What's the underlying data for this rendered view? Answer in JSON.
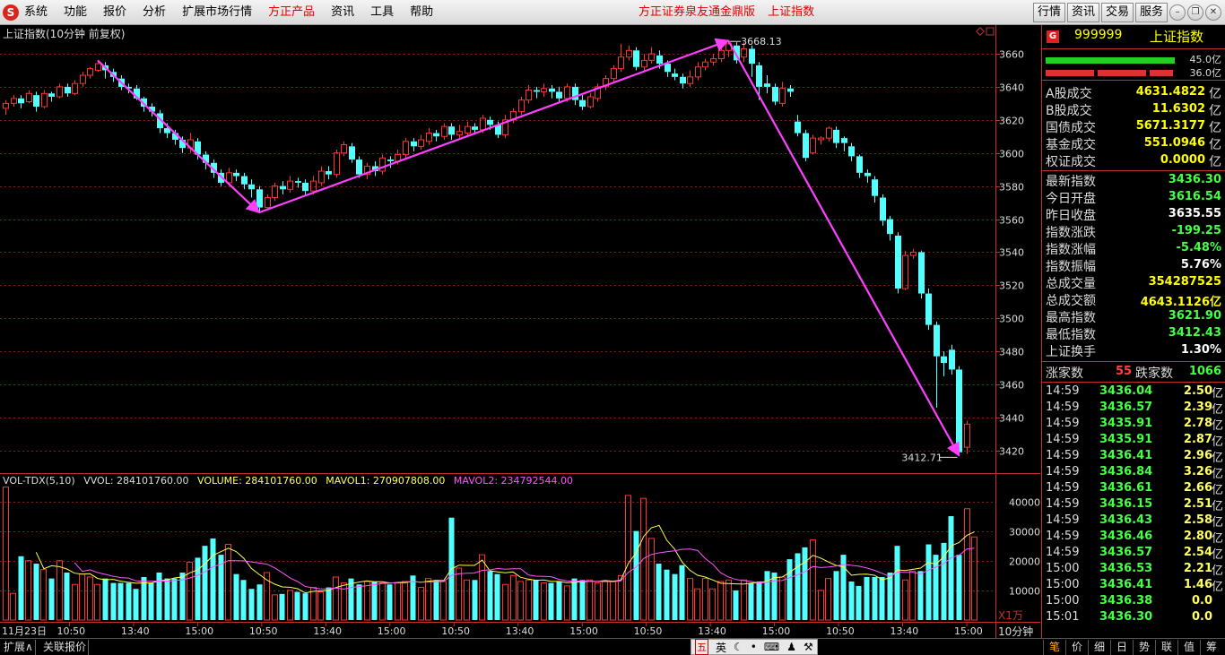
{
  "menubar": {
    "logo": "S",
    "items": [
      "系统",
      "功能",
      "报价",
      "分析",
      "扩展市场行情",
      "方正产品",
      "资讯",
      "工具",
      "帮助"
    ],
    "center_title": "方正证券泉友通金鼎版",
    "center_subtitle": "上证指数",
    "right_buttons": [
      "行情",
      "资讯",
      "交易",
      "服务"
    ]
  },
  "chart": {
    "title": "上证指数(10分钟 前复权)",
    "vol_title": {
      "name": "VOL-TDX(5,10)",
      "vvol": "VVOL: 284101760.00",
      "volume": "VOLUME: 284101760.00",
      "mavol1": "MAVOL1: 270907808.00",
      "mavol2": "MAVOL2: 234792544.00"
    },
    "vol_unit": "X1万",
    "period": "10分钟",
    "high_label": "3668.13",
    "low_label": "3412.71",
    "colors": {
      "up": "#ff3232",
      "down": "#54ffff",
      "ma1": "#ffff54",
      "ma2": "#ff54ff",
      "trend": "#ff40ff",
      "grid": "#8b1a1a"
    }
  },
  "chart_data": {
    "type": "candlestick",
    "price_axis": {
      "ticks": [
        3420,
        3440,
        3460,
        3480,
        3500,
        3520,
        3540,
        3560,
        3580,
        3600,
        3620,
        3640,
        3660
      ],
      "range": [
        3408,
        3673
      ]
    },
    "volume_axis": {
      "ticks": [
        10000,
        20000,
        30000,
        40000
      ],
      "range": [
        0,
        48000
      ],
      "unit": "X1万"
    },
    "time_axis_labels": [
      "11月23日",
      "10:50",
      "13:40",
      "15:00",
      "10:50",
      "13:40",
      "15:00",
      "10:50",
      "13:40",
      "15:00",
      "10:50",
      "13:40",
      "15:00",
      "10:50",
      "13:40",
      "15:00"
    ],
    "candles": [
      [
        3627,
        3630,
        3623,
        3632
      ],
      [
        3630,
        3633,
        3628,
        3635
      ],
      [
        3633,
        3630,
        3627,
        3635
      ],
      [
        3631,
        3636,
        3630,
        3638
      ],
      [
        3635,
        3628,
        3625,
        3637
      ],
      [
        3628,
        3636,
        3627,
        3638
      ],
      [
        3636,
        3634,
        3631,
        3637
      ],
      [
        3634,
        3640,
        3633,
        3642
      ],
      [
        3640,
        3636,
        3634,
        3642
      ],
      [
        3636,
        3642,
        3635,
        3644
      ],
      [
        3642,
        3647,
        3640,
        3649
      ],
      [
        3647,
        3651,
        3645,
        3652
      ],
      [
        3650,
        3654,
        3649,
        3656
      ],
      [
        3653,
        3650,
        3645,
        3655
      ],
      [
        3649,
        3646,
        3643,
        3651
      ],
      [
        3645,
        3640,
        3638,
        3647
      ],
      [
        3640,
        3639,
        3636,
        3642
      ],
      [
        3639,
        3633,
        3632,
        3641
      ],
      [
        3633,
        3628,
        3625,
        3634
      ],
      [
        3628,
        3625,
        3622,
        3630
      ],
      [
        3624,
        3615,
        3612,
        3626
      ],
      [
        3615,
        3612,
        3609,
        3618
      ],
      [
        3612,
        3608,
        3605,
        3614
      ],
      [
        3608,
        3603,
        3600,
        3610
      ],
      [
        3603,
        3608,
        3600,
        3612
      ],
      [
        3607,
        3599,
        3596,
        3609
      ],
      [
        3599,
        3594,
        3590,
        3601
      ],
      [
        3594,
        3588,
        3585,
        3596
      ],
      [
        3588,
        3582,
        3580,
        3590
      ],
      [
        3582,
        3588,
        3580,
        3591
      ],
      [
        3588,
        3586,
        3583,
        3590
      ],
      [
        3586,
        3581,
        3578,
        3588
      ],
      [
        3581,
        3578,
        3573,
        3584
      ],
      [
        3578,
        3567,
        3564,
        3580
      ],
      [
        3567,
        3573,
        3566,
        3575
      ],
      [
        3573,
        3580,
        3571,
        3582
      ],
      [
        3580,
        3578,
        3575,
        3583
      ],
      [
        3578,
        3583,
        3576,
        3586
      ],
      [
        3583,
        3582,
        3579,
        3585
      ],
      [
        3582,
        3577,
        3574,
        3584
      ],
      [
        3577,
        3583,
        3575,
        3586
      ],
      [
        3582,
        3589,
        3580,
        3592
      ],
      [
        3589,
        3587,
        3584,
        3592
      ],
      [
        3587,
        3600,
        3585,
        3602
      ],
      [
        3600,
        3605,
        3598,
        3607
      ],
      [
        3604,
        3596,
        3594,
        3606
      ],
      [
        3596,
        3587,
        3585,
        3598
      ],
      [
        3587,
        3592,
        3584,
        3594
      ],
      [
        3592,
        3589,
        3586,
        3595
      ],
      [
        3589,
        3597,
        3587,
        3599
      ],
      [
        3596,
        3595,
        3591,
        3598
      ],
      [
        3595,
        3599,
        3593,
        3602
      ],
      [
        3599,
        3607,
        3597,
        3609
      ],
      [
        3607,
        3604,
        3601,
        3609
      ],
      [
        3604,
        3608,
        3602,
        3611
      ],
      [
        3607,
        3612,
        3605,
        3615
      ],
      [
        3612,
        3610,
        3607,
        3614
      ],
      [
        3610,
        3616,
        3608,
        3618
      ],
      [
        3616,
        3611,
        3608,
        3618
      ],
      [
        3611,
        3613,
        3609,
        3617
      ],
      [
        3612,
        3616,
        3610,
        3619
      ],
      [
        3616,
        3614,
        3611,
        3618
      ],
      [
        3614,
        3621,
        3612,
        3623
      ],
      [
        3620,
        3617,
        3614,
        3622
      ],
      [
        3617,
        3611,
        3609,
        3619
      ],
      [
        3611,
        3620,
        3609,
        3623
      ],
      [
        3620,
        3625,
        3618,
        3627
      ],
      [
        3625,
        3632,
        3623,
        3634
      ],
      [
        3632,
        3638,
        3630,
        3641
      ],
      [
        3638,
        3637,
        3633,
        3640
      ],
      [
        3637,
        3639,
        3634,
        3642
      ],
      [
        3639,
        3637,
        3633,
        3641
      ],
      [
        3637,
        3633,
        3630,
        3640
      ],
      [
        3633,
        3640,
        3631,
        3642
      ],
      [
        3640,
        3632,
        3629,
        3642
      ],
      [
        3632,
        3628,
        3626,
        3635
      ],
      [
        3628,
        3634,
        3627,
        3636
      ],
      [
        3633,
        3640,
        3631,
        3642
      ],
      [
        3640,
        3645,
        3638,
        3647
      ],
      [
        3645,
        3651,
        3643,
        3653
      ],
      [
        3651,
        3658,
        3649,
        3666
      ],
      [
        3658,
        3662,
        3656,
        3665
      ],
      [
        3662,
        3652,
        3650,
        3664
      ],
      [
        3652,
        3656,
        3650,
        3660
      ],
      [
        3656,
        3660,
        3654,
        3664
      ],
      [
        3659,
        3654,
        3651,
        3662
      ],
      [
        3654,
        3649,
        3646,
        3656
      ],
      [
        3648,
        3646,
        3644,
        3651
      ],
      [
        3646,
        3642,
        3639,
        3648
      ],
      [
        3642,
        3646,
        3640,
        3650
      ],
      [
        3646,
        3652,
        3644,
        3655
      ],
      [
        3652,
        3655,
        3650,
        3657
      ],
      [
        3655,
        3657,
        3653,
        3660
      ],
      [
        3657,
        3662,
        3655,
        3665
      ],
      [
        3662,
        3666,
        3658,
        3668
      ],
      [
        3665,
        3656,
        3654,
        3667
      ],
      [
        3658,
        3663,
        3655,
        3667
      ],
      [
        3663,
        3654,
        3646,
        3665
      ],
      [
        3653,
        3640,
        3632,
        3655
      ],
      [
        3642,
        3640,
        3636,
        3647
      ],
      [
        3640,
        3631,
        3629,
        3642
      ],
      [
        3630,
        3639,
        3628,
        3643
      ],
      [
        3639,
        3637,
        3634,
        3641
      ],
      [
        3619,
        3612,
        3610,
        3623
      ],
      [
        3612,
        3597,
        3595,
        3614
      ],
      [
        3600,
        3609,
        3599,
        3611
      ],
      [
        3608,
        3609,
        3605,
        3610
      ],
      [
        3609,
        3615,
        3607,
        3616
      ],
      [
        3614,
        3606,
        3603,
        3616
      ],
      [
        3609,
        3606,
        3601,
        3610
      ],
      [
        3604,
        3598,
        3595,
        3606
      ],
      [
        3598,
        3588,
        3585,
        3599
      ],
      [
        3588,
        3586,
        3582,
        3590
      ],
      [
        3584,
        3574,
        3570,
        3586
      ],
      [
        3573,
        3559,
        3556,
        3575
      ],
      [
        3560,
        3551,
        3547,
        3562
      ],
      [
        3550,
        3518,
        3515,
        3552
      ],
      [
        3518,
        3538,
        3517,
        3541
      ],
      [
        3538,
        3540,
        3536,
        3542
      ],
      [
        3540,
        3515,
        3512,
        3541
      ],
      [
        3515,
        3496,
        3493,
        3518
      ],
      [
        3496,
        3477,
        3446,
        3498
      ],
      [
        3477,
        3473,
        3465,
        3480
      ],
      [
        3481,
        3469,
        3466,
        3484
      ],
      [
        3469,
        3419,
        3417,
        3471
      ],
      [
        3422,
        3436,
        3418,
        3438
      ]
    ],
    "volumes": [
      44800,
      9000,
      21500,
      20000,
      19000,
      17000,
      14000,
      20000,
      16000,
      12000,
      15500,
      14500,
      12000,
      14000,
      12500,
      12500,
      12500,
      10500,
      14500,
      12500,
      16000,
      14000,
      14000,
      16000,
      19500,
      21000,
      25000,
      27500,
      22000,
      25500,
      15500,
      13500,
      10500,
      12000,
      16000,
      8500,
      8800,
      10000,
      9500,
      9000,
      11000,
      9500,
      11000,
      14500,
      12500,
      14000,
      12000,
      13000,
      13000,
      12500,
      12000,
      12500,
      13000,
      15000,
      11000,
      14000,
      13500,
      13000,
      34500,
      17500,
      13500,
      13500,
      22000,
      16500,
      15500,
      12000,
      15000,
      13000,
      13500,
      13500,
      12500,
      12500,
      13000,
      11500,
      14000,
      13500,
      13500,
      12500,
      13000,
      13000,
      15000,
      42000,
      30000,
      41000,
      27500,
      19000,
      17000,
      15500,
      18500,
      14000,
      10500,
      14000,
      10500,
      13000,
      13500,
      10000,
      13500,
      12500,
      13000,
      16500,
      16000,
      14500,
      20500,
      22500,
      24500,
      27000,
      10000,
      14000,
      16500,
      22000,
      13000,
      11500,
      14500,
      14500,
      14500,
      16000,
      25000,
      13500,
      16500,
      16500,
      25500,
      22000,
      26000,
      35000,
      22000,
      37500,
      28000
    ],
    "ma_overlay": [
      {
        "name": "MAVOL1",
        "ref": "chart.vol_title.mavol1"
      },
      {
        "name": "MAVOL2",
        "ref": "chart.vol_title.mavol2"
      }
    ]
  },
  "panel": {
    "code": "999999",
    "name": "上证指数",
    "g_icon": "G",
    "bar_top": {
      "value": "45.0亿"
    },
    "bar_bottom": {
      "value": "36.0亿"
    },
    "turnover": [
      {
        "label": "A股成交",
        "value": "4631.4822",
        "unit": "亿",
        "color": "yellow"
      },
      {
        "label": "B股成交",
        "value": "11.6302",
        "unit": "亿",
        "color": "yellow"
      },
      {
        "label": "国债成交",
        "value": "5671.3177",
        "unit": "亿",
        "color": "yellow"
      },
      {
        "label": "基金成交",
        "value": "551.0946",
        "unit": "亿",
        "color": "yellow"
      },
      {
        "label": "权证成交",
        "value": "0.0000",
        "unit": "亿",
        "color": "yellow"
      }
    ],
    "quote": [
      {
        "label": "最新指数",
        "value": "3436.30",
        "color": "green"
      },
      {
        "label": "今日开盘",
        "value": "3616.54",
        "color": "green"
      },
      {
        "label": "昨日收盘",
        "value": "3635.55",
        "color": "white"
      },
      {
        "label": "指数涨跌",
        "value": "-199.25",
        "color": "green"
      },
      {
        "label": "指数涨幅",
        "value": "-5.48%",
        "color": "green"
      },
      {
        "label": "指数振幅",
        "value": "5.76%",
        "color": "white"
      },
      {
        "label": "总成交量",
        "value": "354287525",
        "color": "yellow"
      },
      {
        "label": "总成交额",
        "value": "4643.1126亿",
        "color": "yellow"
      },
      {
        "label": "最高指数",
        "value": "3621.90",
        "color": "green"
      },
      {
        "label": "最低指数",
        "value": "3412.43",
        "color": "green"
      },
      {
        "label": "上证换手",
        "value": "1.30%",
        "color": "white"
      }
    ],
    "breadth": {
      "up_label": "涨家数",
      "up_value": "55",
      "down_label": "跌家数",
      "down_value": "1066"
    },
    "ticks": [
      {
        "time": "14:59",
        "price": "3436.04",
        "vol": "2.50",
        "unit": "亿"
      },
      {
        "time": "14:59",
        "price": "3436.57",
        "vol": "2.39",
        "unit": "亿"
      },
      {
        "time": "14:59",
        "price": "3435.91",
        "vol": "2.78",
        "unit": "亿"
      },
      {
        "time": "14:59",
        "price": "3435.91",
        "vol": "2.87",
        "unit": "亿"
      },
      {
        "time": "14:59",
        "price": "3436.41",
        "vol": "2.96",
        "unit": "亿"
      },
      {
        "time": "14:59",
        "price": "3436.84",
        "vol": "3.26",
        "unit": "亿"
      },
      {
        "time": "14:59",
        "price": "3436.61",
        "vol": "2.66",
        "unit": "亿"
      },
      {
        "time": "14:59",
        "price": "3436.15",
        "vol": "2.51",
        "unit": "亿"
      },
      {
        "time": "14:59",
        "price": "3436.43",
        "vol": "2.58",
        "unit": "亿"
      },
      {
        "time": "14:59",
        "price": "3436.46",
        "vol": "2.80",
        "unit": "亿"
      },
      {
        "time": "14:59",
        "price": "3436.57",
        "vol": "2.54",
        "unit": "亿"
      },
      {
        "time": "15:00",
        "price": "3436.53",
        "vol": "2.21",
        "unit": "亿"
      },
      {
        "time": "15:00",
        "price": "3436.41",
        "vol": "1.46",
        "unit": "亿"
      },
      {
        "time": "15:00",
        "price": "3436.38",
        "vol": "0.0",
        "unit": ""
      },
      {
        "time": "15:01",
        "price": "3436.30",
        "vol": "0.0",
        "unit": ""
      }
    ]
  },
  "bottombar": {
    "tabs": [
      "扩展∧",
      "关联报价"
    ],
    "ime": [
      "五",
      "英"
    ],
    "right_tabs": [
      "笔",
      "价",
      "细",
      "日",
      "势",
      "联",
      "值",
      "筹"
    ]
  }
}
